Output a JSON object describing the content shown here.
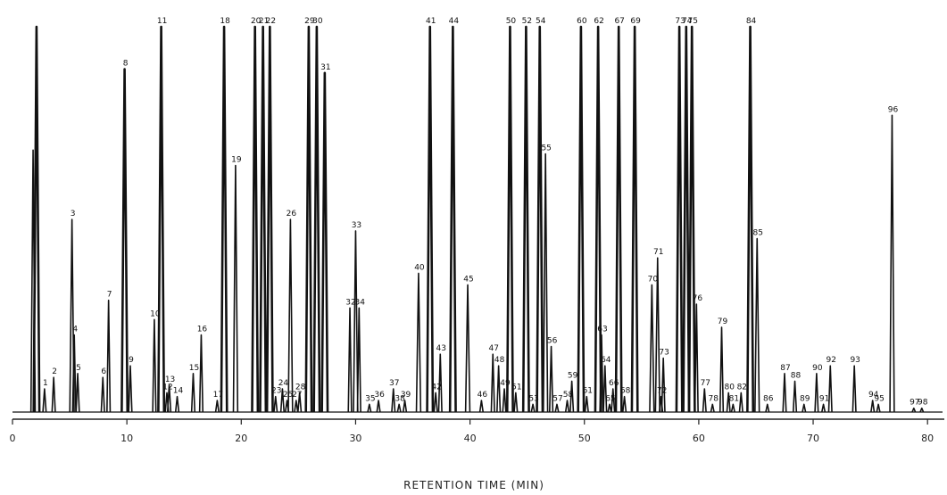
{
  "chart_data": {
    "type": "line",
    "title": "",
    "xlabel": "RETENTION TIME (MIN)",
    "ylabel": "",
    "xlim": [
      0,
      81
    ],
    "ylim": [
      0,
      100
    ],
    "x_ticks": [
      0,
      10,
      20,
      30,
      40,
      50,
      60,
      70,
      80
    ],
    "x_tick_labels": [
      "0",
      "10",
      "20",
      "30",
      "40",
      "50",
      "60",
      "70",
      "80"
    ],
    "grid": false,
    "series": [
      {
        "peaks": [
          {
            "x": 2.1,
            "h": 100,
            "label": ""
          },
          {
            "x": 1.8,
            "h": 68,
            "label": ""
          },
          {
            "x": 2.8,
            "h": 6,
            "label": "1"
          },
          {
            "x": 3.6,
            "h": 9,
            "label": "2"
          },
          {
            "x": 5.2,
            "h": 50,
            "label": "3"
          },
          {
            "x": 5.4,
            "h": 20,
            "label": "4"
          },
          {
            "x": 5.7,
            "h": 10,
            "label": "5"
          },
          {
            "x": 7.9,
            "h": 9,
            "label": "6"
          },
          {
            "x": 8.4,
            "h": 29,
            "label": "7"
          },
          {
            "x": 9.8,
            "h": 89,
            "label": "8"
          },
          {
            "x": 10.3,
            "h": 12,
            "label": "9"
          },
          {
            "x": 12.4,
            "h": 24,
            "label": "10"
          },
          {
            "x": 13.0,
            "h": 100,
            "label": "11"
          },
          {
            "x": 13.5,
            "h": 5,
            "label": "12"
          },
          {
            "x": 13.7,
            "h": 7,
            "label": "13"
          },
          {
            "x": 14.4,
            "h": 4,
            "label": "14"
          },
          {
            "x": 15.8,
            "h": 10,
            "label": "15"
          },
          {
            "x": 16.5,
            "h": 20,
            "label": "16"
          },
          {
            "x": 17.9,
            "h": 3,
            "label": "17"
          },
          {
            "x": 18.5,
            "h": 100,
            "label": "18"
          },
          {
            "x": 19.5,
            "h": 64,
            "label": "19"
          },
          {
            "x": 21.2,
            "h": 100,
            "label": "20"
          },
          {
            "x": 21.9,
            "h": 100,
            "label": "21"
          },
          {
            "x": 22.5,
            "h": 100,
            "label": "22"
          },
          {
            "x": 23.0,
            "h": 4,
            "label": "23"
          },
          {
            "x": 23.6,
            "h": 6,
            "label": "24"
          },
          {
            "x": 24.0,
            "h": 3,
            "label": "25"
          },
          {
            "x": 24.3,
            "h": 50,
            "label": "26"
          },
          {
            "x": 24.8,
            "h": 3,
            "label": "27"
          },
          {
            "x": 25.1,
            "h": 5,
            "label": "28"
          },
          {
            "x": 25.9,
            "h": 100,
            "label": "29"
          },
          {
            "x": 26.6,
            "h": 100,
            "label": "30"
          },
          {
            "x": 27.3,
            "h": 88,
            "label": "31"
          },
          {
            "x": 29.5,
            "h": 27,
            "label": "32"
          },
          {
            "x": 30.0,
            "h": 47,
            "label": "33"
          },
          {
            "x": 30.3,
            "h": 27,
            "label": "34"
          },
          {
            "x": 31.2,
            "h": 2,
            "label": "35"
          },
          {
            "x": 32.0,
            "h": 3,
            "label": "36"
          },
          {
            "x": 33.3,
            "h": 6,
            "label": "37"
          },
          {
            "x": 33.8,
            "h": 2,
            "label": "38"
          },
          {
            "x": 34.3,
            "h": 3,
            "label": "39"
          },
          {
            "x": 35.5,
            "h": 36,
            "label": "40"
          },
          {
            "x": 36.5,
            "h": 100,
            "label": "41"
          },
          {
            "x": 37.0,
            "h": 5,
            "label": "42"
          },
          {
            "x": 37.4,
            "h": 15,
            "label": "43"
          },
          {
            "x": 38.5,
            "h": 100,
            "label": "44"
          },
          {
            "x": 39.8,
            "h": 33,
            "label": "45"
          },
          {
            "x": 41.0,
            "h": 3,
            "label": "46"
          },
          {
            "x": 42.0,
            "h": 15,
            "label": "47"
          },
          {
            "x": 42.5,
            "h": 12,
            "label": "48"
          },
          {
            "x": 43.0,
            "h": 6,
            "label": "49"
          },
          {
            "x": 43.5,
            "h": 100,
            "label": "50"
          },
          {
            "x": 44.0,
            "h": 5,
            "label": "51"
          },
          {
            "x": 44.9,
            "h": 100,
            "label": "52"
          },
          {
            "x": 45.5,
            "h": 2,
            "label": "53"
          },
          {
            "x": 46.1,
            "h": 100,
            "label": "54"
          },
          {
            "x": 46.6,
            "h": 67,
            "label": "55"
          },
          {
            "x": 47.1,
            "h": 17,
            "label": "56"
          },
          {
            "x": 47.6,
            "h": 2,
            "label": "57"
          },
          {
            "x": 48.5,
            "h": 3,
            "label": "58"
          },
          {
            "x": 48.9,
            "h": 8,
            "label": "59"
          },
          {
            "x": 49.7,
            "h": 100,
            "label": "60"
          },
          {
            "x": 50.2,
            "h": 4,
            "label": "61"
          },
          {
            "x": 51.2,
            "h": 100,
            "label": "62"
          },
          {
            "x": 51.5,
            "h": 20,
            "label": "63"
          },
          {
            "x": 51.8,
            "h": 12,
            "label": "64"
          },
          {
            "x": 52.2,
            "h": 2,
            "label": "65"
          },
          {
            "x": 52.5,
            "h": 6,
            "label": "66"
          },
          {
            "x": 53.0,
            "h": 100,
            "label": "67"
          },
          {
            "x": 53.5,
            "h": 4,
            "label": "68"
          },
          {
            "x": 54.4,
            "h": 100,
            "label": "69"
          },
          {
            "x": 55.9,
            "h": 33,
            "label": "70"
          },
          {
            "x": 56.4,
            "h": 40,
            "label": "71"
          },
          {
            "x": 56.7,
            "h": 4,
            "label": "72"
          },
          {
            "x": 56.9,
            "h": 14,
            "label": "73"
          },
          {
            "x": 58.3,
            "h": 100,
            "label": "73"
          },
          {
            "x": 58.9,
            "h": 100,
            "label": "74"
          },
          {
            "x": 59.4,
            "h": 100,
            "label": "75"
          },
          {
            "x": 59.8,
            "h": 28,
            "label": "76"
          },
          {
            "x": 60.5,
            "h": 6,
            "label": "77"
          },
          {
            "x": 61.2,
            "h": 2,
            "label": "78"
          },
          {
            "x": 62.0,
            "h": 22,
            "label": "79"
          },
          {
            "x": 62.6,
            "h": 5,
            "label": "80"
          },
          {
            "x": 63.0,
            "h": 2,
            "label": "81"
          },
          {
            "x": 63.7,
            "h": 5,
            "label": "82"
          },
          {
            "x": 64.5,
            "h": 100,
            "label": "84"
          },
          {
            "x": 65.1,
            "h": 45,
            "label": "85"
          },
          {
            "x": 66.0,
            "h": 2,
            "label": "86"
          },
          {
            "x": 67.5,
            "h": 10,
            "label": "87"
          },
          {
            "x": 68.4,
            "h": 8,
            "label": "88"
          },
          {
            "x": 69.2,
            "h": 2,
            "label": "89"
          },
          {
            "x": 70.3,
            "h": 10,
            "label": "90"
          },
          {
            "x": 70.9,
            "h": 2,
            "label": "91"
          },
          {
            "x": 71.5,
            "h": 12,
            "label": "92"
          },
          {
            "x": 73.6,
            "h": 12,
            "label": "93"
          },
          {
            "x": 75.2,
            "h": 3,
            "label": "94"
          },
          {
            "x": 75.7,
            "h": 2,
            "label": "95"
          },
          {
            "x": 76.9,
            "h": 77,
            "label": "96"
          },
          {
            "x": 78.8,
            "h": 1,
            "label": "97"
          },
          {
            "x": 79.5,
            "h": 1,
            "label": "98"
          }
        ]
      }
    ]
  }
}
